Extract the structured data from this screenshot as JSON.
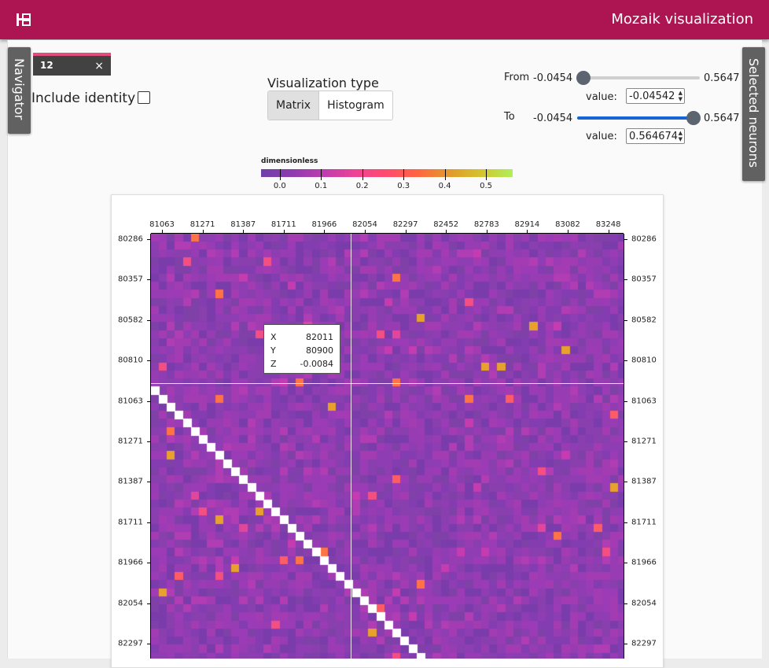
{
  "app": {
    "title": "Mozaik visualization",
    "logo_icon": "tree-structure-icon"
  },
  "side_tabs": {
    "left": "Navigator",
    "right": "Selected neurons"
  },
  "tab": {
    "label": "12",
    "close": "×"
  },
  "identity": {
    "label": "Include identity",
    "checked": false
  },
  "visualization_type": {
    "label": "Visualization type",
    "options": [
      "Matrix",
      "Histogram"
    ],
    "selected": "Matrix"
  },
  "range": {
    "from_label": "From",
    "to_label": "To",
    "min_label": "-0.0454",
    "max_label": "0.5647",
    "from_value": "-0.04542",
    "to_value": "0.564674",
    "value_label": "value:",
    "from_fraction": 0.0,
    "to_fraction": 1.0
  },
  "colorbar": {
    "unit": "dimensionless",
    "ticks": [
      "0.0",
      "0.1",
      "0.2",
      "0.3",
      "0.4",
      "0.5"
    ],
    "tick_values": [
      0.0,
      0.1,
      0.2,
      0.3,
      0.4,
      0.5
    ],
    "range": [
      -0.0454,
      0.5647
    ]
  },
  "matrix": {
    "x_ticks": [
      "81063",
      "81271",
      "81387",
      "81711",
      "81966",
      "82054",
      "82297",
      "82452",
      "82783",
      "82914",
      "83082",
      "83248"
    ],
    "y_ticks": [
      "80286",
      "80357",
      "80582",
      "80810",
      "81063",
      "81271",
      "81387",
      "81711",
      "81966",
      "82054",
      "82297"
    ],
    "diagonal_color": "#ffffff",
    "base_color": "#8b3cb0"
  },
  "tooltip": {
    "rows": [
      {
        "key": "X",
        "value": "82011"
      },
      {
        "key": "Y",
        "value": "80900"
      },
      {
        "key": "Z",
        "value": "-0.0084"
      }
    ]
  }
}
